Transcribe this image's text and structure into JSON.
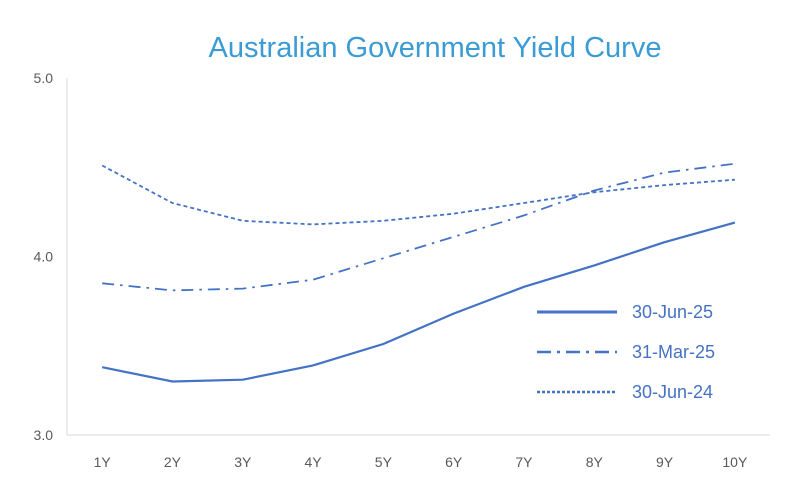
{
  "chart_data": {
    "type": "line",
    "title": "Australian Government Yield Curve",
    "xlabel": "",
    "ylabel": "",
    "categories": [
      "1Y",
      "2Y",
      "3Y",
      "4Y",
      "5Y",
      "6Y",
      "7Y",
      "8Y",
      "9Y",
      "10Y"
    ],
    "ylim": [
      3.0,
      5.0
    ],
    "yticks": [
      "3.0",
      "4.0",
      "5.0"
    ],
    "grid": false,
    "legend_position": "right",
    "series": [
      {
        "name": "30-Jun-25",
        "style": "solid",
        "color": "#4472c4",
        "values": [
          3.38,
          3.3,
          3.31,
          3.39,
          3.51,
          3.68,
          3.83,
          3.95,
          4.08,
          4.19
        ]
      },
      {
        "name": "31-Mar-25",
        "style": "dashdot",
        "color": "#4472c4",
        "values": [
          3.85,
          3.81,
          3.82,
          3.87,
          3.99,
          4.11,
          4.23,
          4.37,
          4.47,
          4.52
        ]
      },
      {
        "name": "30-Jun-24",
        "style": "dash",
        "color": "#4472c4",
        "values": [
          4.51,
          4.3,
          4.2,
          4.18,
          4.2,
          4.24,
          4.3,
          4.36,
          4.4,
          4.43
        ]
      }
    ]
  }
}
